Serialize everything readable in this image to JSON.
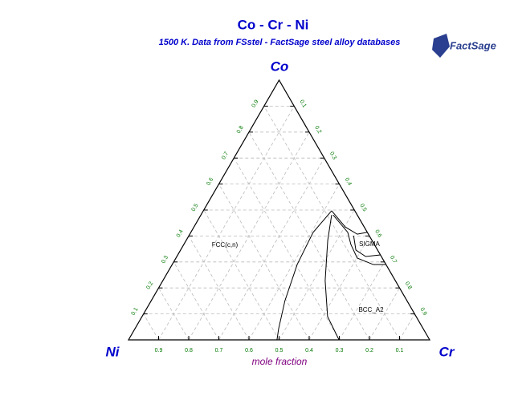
{
  "chart_data": {
    "type": "ternary",
    "title": "Co - Cr - Ni",
    "subtitle": "1500 K.  Data from FSstel - FactSage steel alloy databases",
    "logo": "FactSage",
    "vertices": {
      "top": "Co",
      "left": "Ni",
      "right": "Cr"
    },
    "axis_label": "mole fraction",
    "co_ticks": [
      0.1,
      0.2,
      0.3,
      0.4,
      0.5,
      0.6,
      0.7,
      0.8,
      0.9
    ],
    "cr_ticks": [
      0.1,
      0.2,
      0.3,
      0.4,
      0.5,
      0.6,
      0.7,
      0.8,
      0.9
    ],
    "ni_ticks": [
      0.1,
      0.2,
      0.3,
      0.4,
      0.5,
      0.6,
      0.7,
      0.8,
      0.9
    ],
    "grid": true,
    "color": "#000000",
    "series": [
      {
        "cr": [
          0.426,
          0.406,
          0.415,
          0.444,
          0.477,
          0.493
        ],
        "co": [
          0.497,
          0.414,
          0.29,
          0.151,
          0.043,
          0
        ]
      },
      {
        "cr": [
          0.434,
          0.47,
          0.539,
          0.616,
          0.699
        ],
        "co": [
          0.481,
          0.383,
          0.228,
          0.09,
          0
        ]
      },
      {
        "cr": [
          0.426,
          0.502,
          0.556,
          0.585
        ],
        "co": [
          0.497,
          0.435,
          0.407,
          0.414
        ]
      },
      {
        "cr": [
          0.439,
          0.521,
          0.555,
          0.602,
          0.668,
          0.708
        ],
        "co": [
          0.481,
          0.414,
          0.367,
          0.315,
          0.29,
          0.29
        ]
      },
      {
        "cr": [
          0.547,
          0.582,
          0.627,
          0.673
        ],
        "co": [
          0.401,
          0.346,
          0.321,
          0.327
        ]
      }
    ],
    "annotations": [
      "FCC(c,n)",
      "SIGMA",
      "BCC_A2"
    ]
  }
}
